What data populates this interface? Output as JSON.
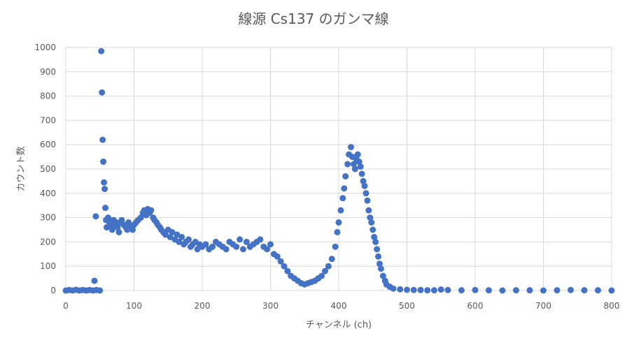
{
  "chart_data": {
    "type": "scatter",
    "title": "線源 Cs137 のガンマ線",
    "xlabel": "チャンネル (ch)",
    "ylabel": "カウント数",
    "xlim": [
      0,
      800
    ],
    "ylim": [
      0,
      1000
    ],
    "grid": true,
    "marker_color": "#4472c4",
    "x_ticks": [
      0,
      100,
      200,
      300,
      400,
      500,
      600,
      700,
      800
    ],
    "y_ticks": [
      0,
      100,
      200,
      300,
      400,
      500,
      600,
      700,
      800,
      900,
      1000
    ],
    "series": [
      {
        "x": [
          0,
          5,
          10,
          15,
          20,
          25,
          30,
          35,
          40,
          42,
          44,
          45,
          50,
          52,
          53,
          54,
          55,
          56,
          57,
          58,
          59,
          60,
          62,
          64,
          66,
          68,
          70,
          72,
          74,
          76,
          78,
          80,
          82,
          85,
          88,
          90,
          92,
          95,
          98,
          100,
          103,
          106,
          110,
          113,
          115,
          118,
          120,
          123,
          125,
          128,
          130,
          133,
          135,
          138,
          140,
          143,
          146,
          150,
          153,
          156,
          160,
          163,
          166,
          170,
          173,
          176,
          180,
          183,
          186,
          190,
          193,
          196,
          200,
          205,
          210,
          215,
          220,
          225,
          230,
          235,
          240,
          245,
          250,
          255,
          260,
          265,
          270,
          275,
          280,
          285,
          290,
          295,
          300,
          305,
          310,
          315,
          320,
          325,
          330,
          335,
          340,
          345,
          350,
          355,
          360,
          365,
          370,
          375,
          380,
          385,
          390,
          395,
          398,
          400,
          403,
          406,
          408,
          410,
          413,
          415,
          418,
          420,
          422,
          424,
          426,
          428,
          430,
          432,
          434,
          436,
          438,
          440,
          442,
          444,
          446,
          448,
          450,
          452,
          454,
          456,
          458,
          460,
          462,
          465,
          468,
          470,
          475,
          480,
          490,
          500,
          510,
          520,
          530,
          540,
          550,
          560,
          580,
          600,
          620,
          640,
          660,
          680,
          700,
          720,
          740,
          760,
          780,
          800
        ],
        "y": [
          0,
          2,
          0,
          3,
          0,
          2,
          0,
          2,
          0,
          40,
          305,
          2,
          0,
          985,
          815,
          620,
          530,
          445,
          418,
          340,
          290,
          260,
          300,
          280,
          270,
          250,
          290,
          270,
          280,
          260,
          240,
          280,
          290,
          270,
          260,
          250,
          280,
          260,
          250,
          270,
          280,
          290,
          300,
          320,
          330,
          310,
          335,
          320,
          330,
          300,
          290,
          280,
          270,
          260,
          250,
          240,
          230,
          250,
          220,
          240,
          210,
          230,
          200,
          220,
          190,
          200,
          210,
          180,
          190,
          200,
          170,
          190,
          180,
          190,
          170,
          180,
          200,
          190,
          180,
          170,
          200,
          190,
          180,
          210,
          170,
          200,
          180,
          190,
          200,
          210,
          180,
          170,
          190,
          150,
          140,
          120,
          100,
          80,
          60,
          50,
          40,
          30,
          25,
          30,
          35,
          40,
          50,
          60,
          80,
          100,
          130,
          180,
          240,
          280,
          330,
          380,
          420,
          470,
          520,
          560,
          590,
          550,
          520,
          500,
          540,
          560,
          530,
          510,
          480,
          450,
          430,
          400,
          370,
          330,
          300,
          280,
          250,
          220,
          200,
          170,
          140,
          110,
          90,
          60,
          40,
          25,
          15,
          8,
          5,
          3,
          2,
          2,
          1,
          1,
          4,
          2,
          1,
          2,
          1,
          0,
          1,
          1,
          0,
          1,
          2,
          1,
          1,
          0
        ]
      }
    ]
  }
}
